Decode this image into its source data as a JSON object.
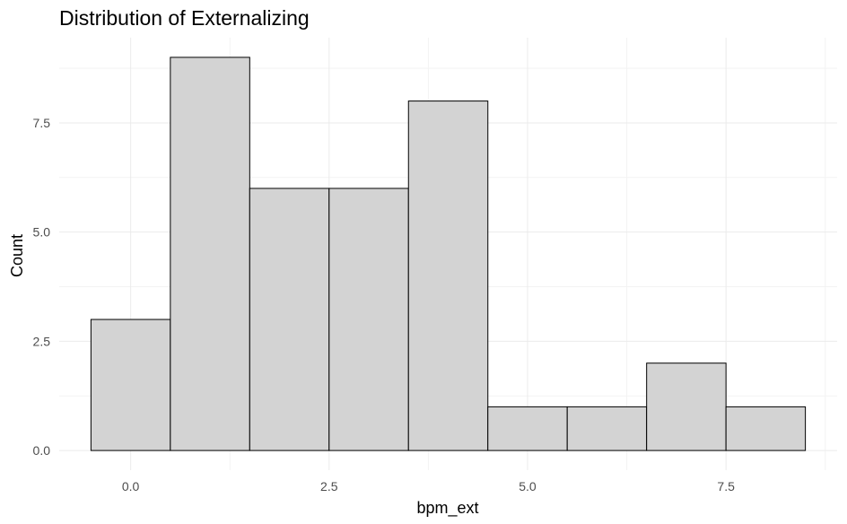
{
  "chart_data": {
    "type": "bar",
    "title": "Distribution of Externalizing",
    "xlabel": "bpm_ext",
    "ylabel": "Count",
    "x": [
      0,
      1,
      2,
      3,
      4,
      5,
      6,
      7,
      8
    ],
    "values": [
      3,
      9,
      6,
      6,
      8,
      1,
      1,
      2,
      1
    ],
    "bin_width": 1,
    "xlim": [
      -0.9,
      8.9
    ],
    "ylim": [
      -0.45,
      9.45
    ],
    "x_ticks": [
      0,
      2.5,
      5,
      7.5
    ],
    "x_tick_labels": [
      "0.0",
      "2.5",
      "5.0",
      "7.5"
    ],
    "y_ticks": [
      0,
      2.5,
      5,
      7.5
    ],
    "y_tick_labels": [
      "0.0",
      "2.5",
      "5.0",
      "7.5"
    ],
    "grid": true,
    "legend": "none",
    "colors": {
      "bar_fill": "#d3d3d3",
      "bar_outline": "#000000"
    }
  }
}
